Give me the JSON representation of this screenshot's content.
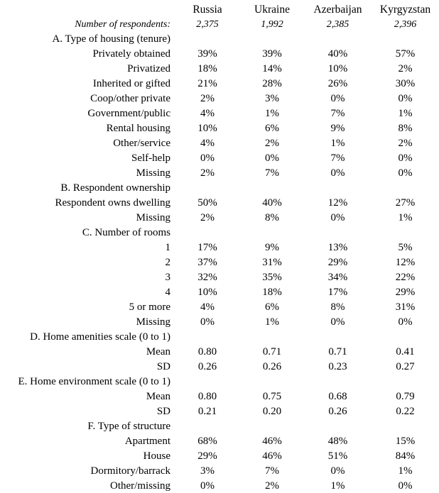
{
  "columns": [
    "Russia",
    "Ukraine",
    "Azerbaijan",
    "Kyrgyzstan"
  ],
  "respondents": {
    "label": "Number of respondents:",
    "values": [
      "2,375",
      "1,992",
      "2,385",
      "2,396"
    ]
  },
  "rows": [
    {
      "type": "section",
      "label": "A. Type of housing (tenure)"
    },
    {
      "type": "data",
      "label": "Privately obtained",
      "values": [
        "39%",
        "39%",
        "40%",
        "57%"
      ]
    },
    {
      "type": "data",
      "label": "Privatized",
      "values": [
        "18%",
        "14%",
        "10%",
        "2%"
      ]
    },
    {
      "type": "data",
      "label": "Inherited or gifted",
      "values": [
        "21%",
        "28%",
        "26%",
        "30%"
      ]
    },
    {
      "type": "data",
      "label": "Coop/other private",
      "values": [
        "2%",
        "3%",
        "0%",
        "0%"
      ]
    },
    {
      "type": "data",
      "label": "Government/public",
      "values": [
        "4%",
        "1%",
        "7%",
        "1%"
      ]
    },
    {
      "type": "data",
      "label": "Rental housing",
      "values": [
        "10%",
        "6%",
        "9%",
        "8%"
      ]
    },
    {
      "type": "data",
      "label": "Other/service",
      "values": [
        "4%",
        "2%",
        "1%",
        "2%"
      ]
    },
    {
      "type": "data",
      "label": "Self-help",
      "values": [
        "0%",
        "0%",
        "7%",
        "0%"
      ]
    },
    {
      "type": "data",
      "label": "Missing",
      "values": [
        "2%",
        "7%",
        "0%",
        "0%"
      ]
    },
    {
      "type": "section",
      "label": "B. Respondent ownership"
    },
    {
      "type": "data",
      "label": "Respondent owns dwelling",
      "values": [
        "50%",
        "40%",
        "12%",
        "27%"
      ]
    },
    {
      "type": "data",
      "label": "Missing",
      "values": [
        "2%",
        "8%",
        "0%",
        "1%"
      ]
    },
    {
      "type": "section",
      "label": "C. Number of rooms"
    },
    {
      "type": "data",
      "label": "1",
      "values": [
        "17%",
        "9%",
        "13%",
        "5%"
      ]
    },
    {
      "type": "data",
      "label": "2",
      "values": [
        "37%",
        "31%",
        "29%",
        "12%"
      ]
    },
    {
      "type": "data",
      "label": "3",
      "values": [
        "32%",
        "35%",
        "34%",
        "22%"
      ]
    },
    {
      "type": "data",
      "label": "4",
      "values": [
        "10%",
        "18%",
        "17%",
        "29%"
      ]
    },
    {
      "type": "data",
      "label": "5 or more",
      "values": [
        "4%",
        "6%",
        "8%",
        "31%"
      ]
    },
    {
      "type": "data",
      "label": "Missing",
      "values": [
        "0%",
        "1%",
        "0%",
        "0%"
      ]
    },
    {
      "type": "section",
      "label": "D. Home amenities scale (0 to 1)"
    },
    {
      "type": "data",
      "label": "Mean",
      "values": [
        "0.80",
        "0.71",
        "0.71",
        "0.41"
      ]
    },
    {
      "type": "data",
      "label": "SD",
      "values": [
        "0.26",
        "0.26",
        "0.23",
        "0.27"
      ]
    },
    {
      "type": "section",
      "label": "E. Home environment scale (0 to 1)"
    },
    {
      "type": "data",
      "label": "Mean",
      "values": [
        "0.80",
        "0.75",
        "0.68",
        "0.79"
      ]
    },
    {
      "type": "data",
      "label": "SD",
      "values": [
        "0.21",
        "0.20",
        "0.26",
        "0.22"
      ]
    },
    {
      "type": "section",
      "label": "F. Type of structure"
    },
    {
      "type": "data",
      "label": "Apartment",
      "values": [
        "68%",
        "46%",
        "48%",
        "15%"
      ]
    },
    {
      "type": "data",
      "label": "House",
      "values": [
        "29%",
        "46%",
        "51%",
        "84%"
      ]
    },
    {
      "type": "data",
      "label": "Dormitory/barrack",
      "values": [
        "3%",
        "7%",
        "0%",
        "1%"
      ]
    },
    {
      "type": "data",
      "label": "Other/missing",
      "bold_label": true,
      "values": [
        "0%",
        "2%",
        "1%",
        "0%"
      ]
    }
  ],
  "colors": {
    "text": "#000000",
    "background": "#ffffff"
  }
}
